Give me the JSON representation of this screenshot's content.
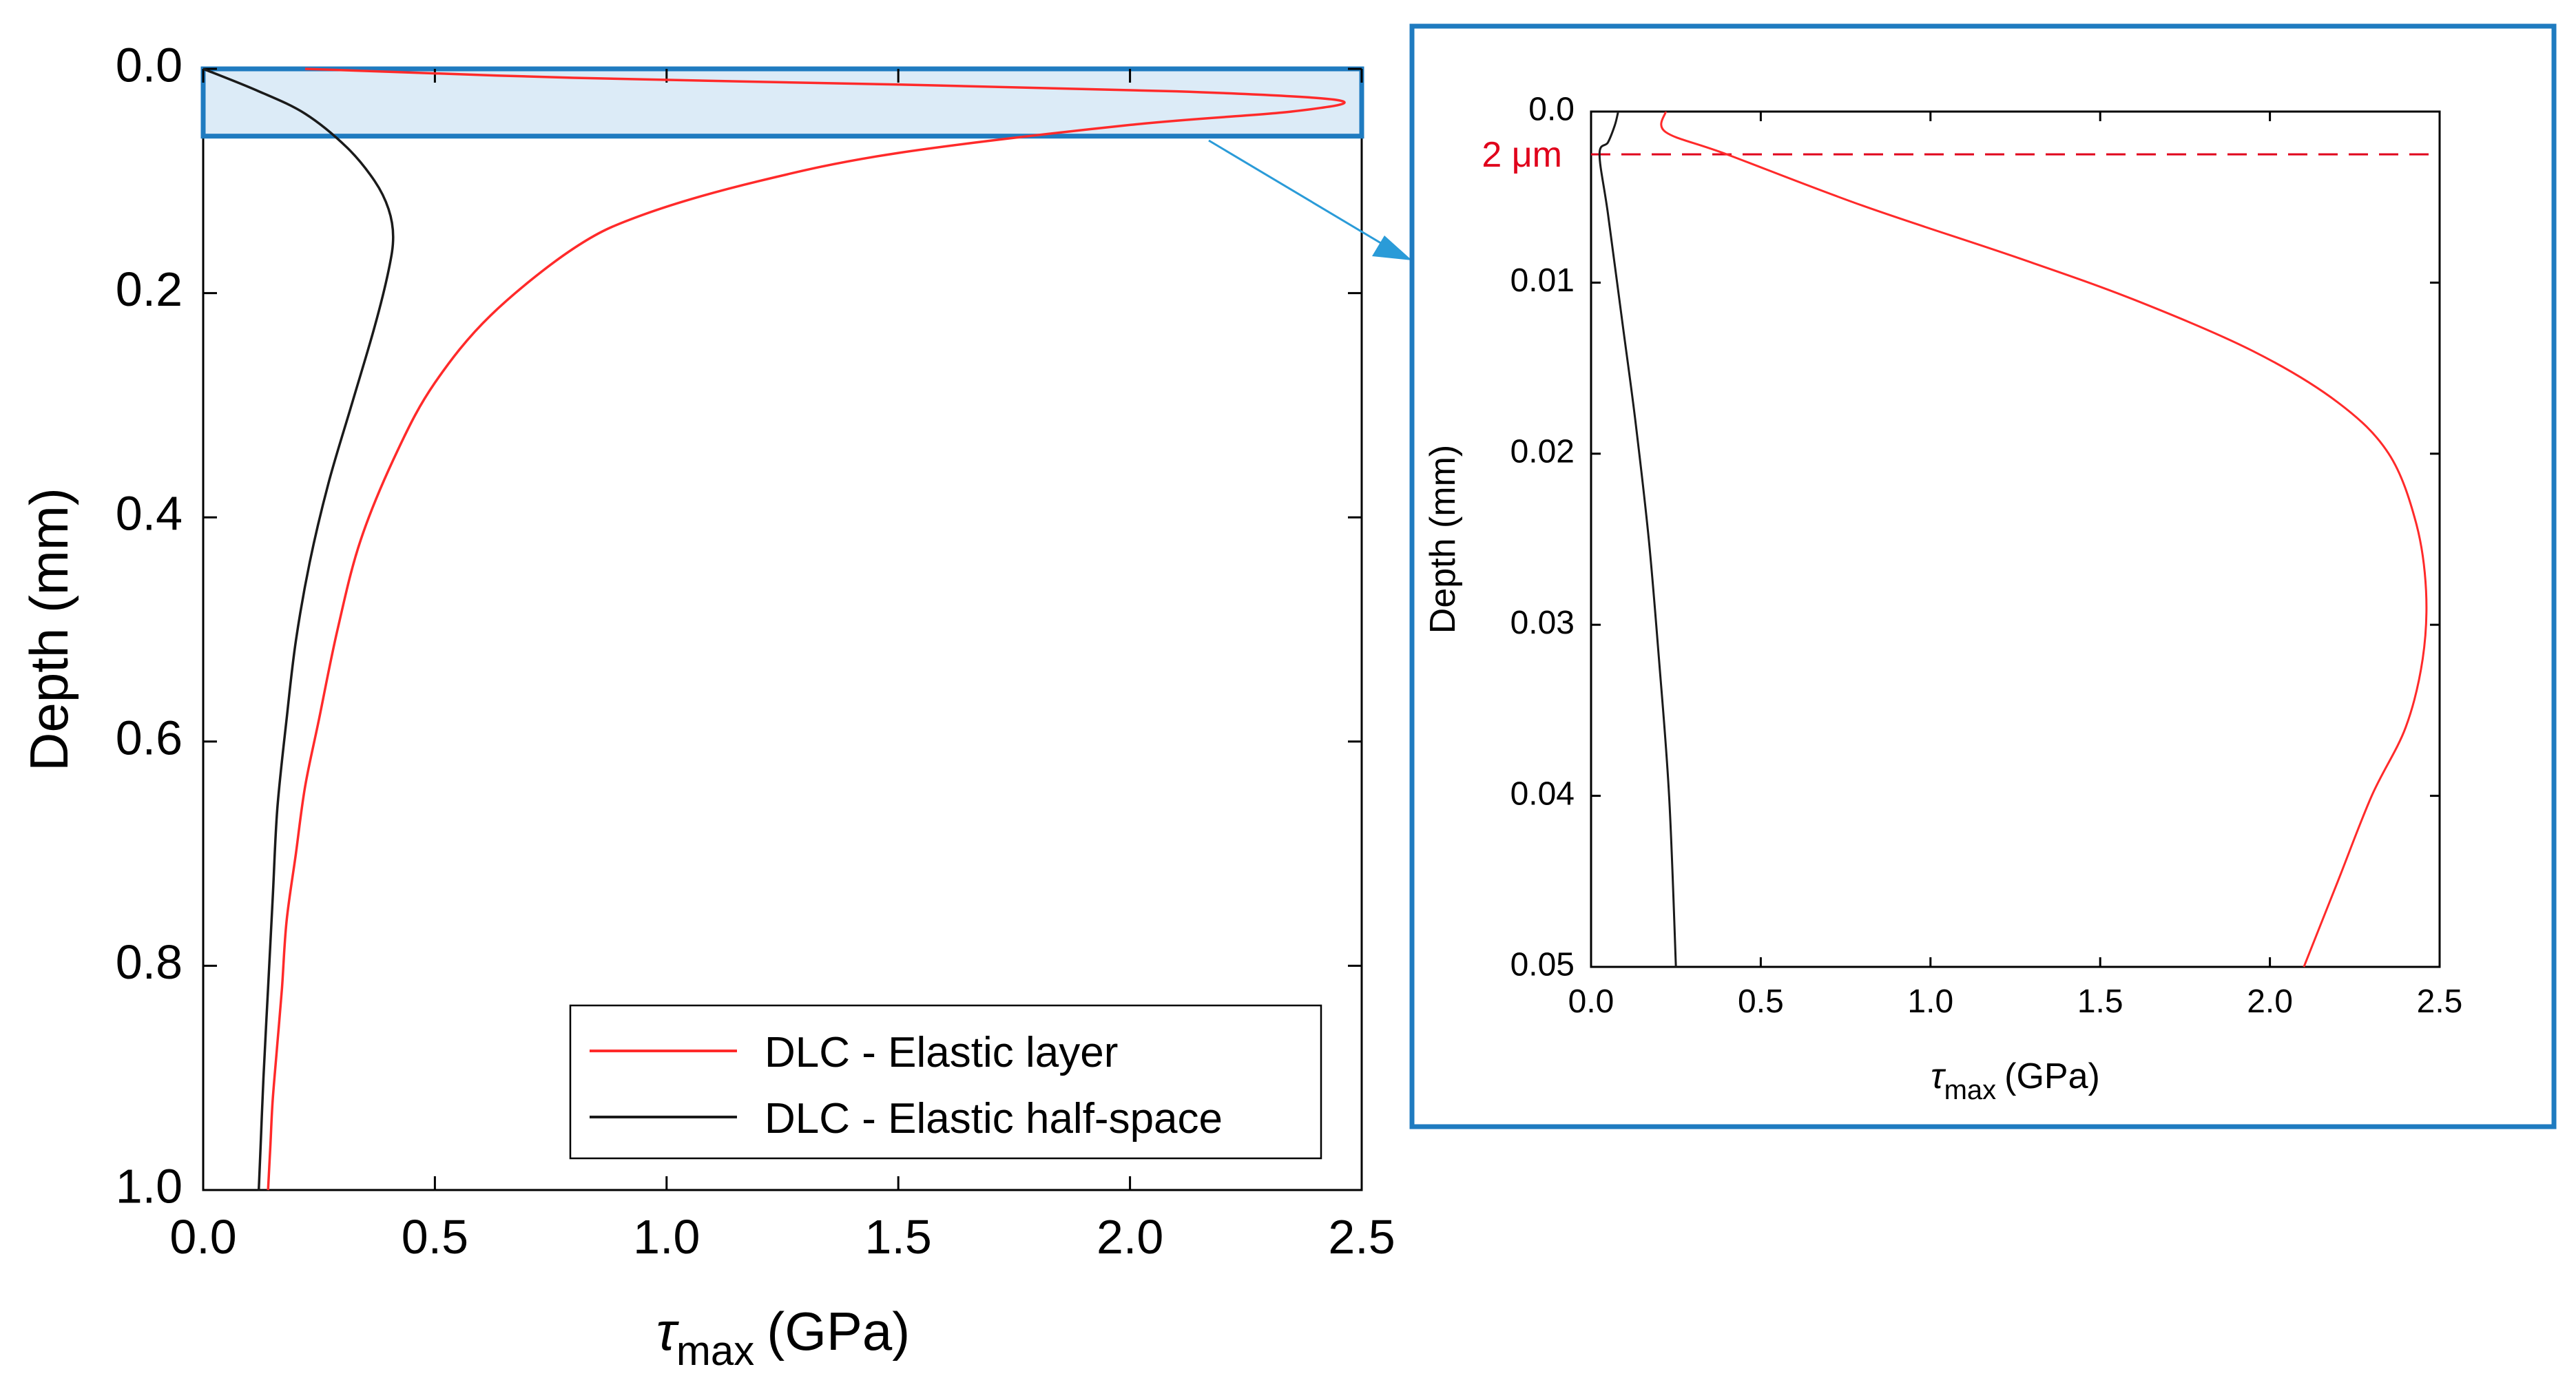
{
  "colors": {
    "elastic_layer": "#ff2a2a",
    "half_space": "#1a1a1a",
    "highlight_stroke": "#1f7bc0",
    "highlight_fill": "#dcebf7",
    "inset_frame": "#1f7bc0",
    "arrow": "#2a9bd8",
    "annotation": "#e0001b"
  },
  "chart_data": [
    {
      "id": "main",
      "type": "line",
      "xlabel_symbol": "τ",
      "xlabel_sub": "max",
      "xlabel_unit": "(GPa)",
      "ylabel": "Depth (mm)",
      "xlim": [
        0,
        2.5
      ],
      "ylim": [
        0,
        1.0
      ],
      "y_inverted": true,
      "grid": false,
      "xticks": [
        "0.0",
        "0.5",
        "1.0",
        "1.5",
        "2.0",
        "2.5"
      ],
      "yticks": [
        "0.0",
        "0.2",
        "0.4",
        "0.6",
        "0.8",
        "1.0"
      ],
      "legend": {
        "placement": "bottom-right",
        "entries": [
          "DLC - Elastic layer",
          "DLC - Elastic half-space"
        ]
      },
      "highlight_region": {
        "depth_from": 0.0,
        "depth_to": 0.06
      },
      "series": [
        {
          "name": "DLC - Elastic layer",
          "color_key": "elastic_layer",
          "x": [
            0.22,
            0.8,
            1.5,
            2.1,
            2.45,
            2.35,
            2.0,
            1.5,
            1.2,
            0.95,
            0.8,
            0.62,
            0.5,
            0.42,
            0.34,
            0.29,
            0.25,
            0.22,
            0.2,
            0.18,
            0.17,
            0.16,
            0.15,
            0.145,
            0.14
          ],
          "y": [
            0.0,
            0.008,
            0.014,
            0.02,
            0.028,
            0.038,
            0.05,
            0.075,
            0.1,
            0.13,
            0.16,
            0.22,
            0.28,
            0.34,
            0.42,
            0.5,
            0.58,
            0.64,
            0.7,
            0.76,
            0.82,
            0.87,
            0.92,
            0.96,
            1.0
          ]
        },
        {
          "name": "DLC - Elastic half-space",
          "color_key": "half_space",
          "x": [
            0.0,
            0.12,
            0.22,
            0.31,
            0.37,
            0.4,
            0.41,
            0.4,
            0.37,
            0.32,
            0.27,
            0.23,
            0.2,
            0.18,
            0.16,
            0.15,
            0.14,
            0.13,
            0.125,
            0.12
          ],
          "y": [
            0.0,
            0.02,
            0.04,
            0.07,
            0.1,
            0.125,
            0.15,
            0.18,
            0.23,
            0.3,
            0.37,
            0.44,
            0.51,
            0.58,
            0.66,
            0.74,
            0.82,
            0.9,
            0.95,
            1.0
          ]
        }
      ]
    },
    {
      "id": "inset",
      "type": "line",
      "xlabel_symbol": "τ",
      "xlabel_sub": "max",
      "xlabel_unit": "(GPa)",
      "ylabel": "Depth (mm)",
      "xlim": [
        0,
        2.5
      ],
      "ylim": [
        0,
        0.05
      ],
      "y_inverted": true,
      "grid": false,
      "xticks": [
        "0.0",
        "0.5",
        "1.0",
        "1.5",
        "2.0",
        "2.5"
      ],
      "yticks": [
        "0.0",
        "0.01",
        "0.02",
        "0.03",
        "0.04",
        "0.05"
      ],
      "annotation": {
        "label": "2 μm",
        "depth": 0.0025
      },
      "series": [
        {
          "name": "DLC - Elastic layer",
          "color_key": "elastic_layer",
          "x": [
            0.22,
            0.22,
            0.4,
            0.8,
            1.25,
            1.6,
            1.95,
            2.2,
            2.35,
            2.43,
            2.46,
            2.45,
            2.4,
            2.3,
            2.2,
            2.1
          ],
          "y": [
            0.0,
            0.0012,
            0.0025,
            0.0055,
            0.0085,
            0.011,
            0.014,
            0.017,
            0.02,
            0.024,
            0.028,
            0.032,
            0.036,
            0.04,
            0.045,
            0.05
          ]
        },
        {
          "name": "DLC - Elastic half-space",
          "color_key": "half_space",
          "x": [
            0.08,
            0.07,
            0.05,
            0.025,
            0.05,
            0.09,
            0.13,
            0.17,
            0.2,
            0.23,
            0.25
          ],
          "y": [
            0.0,
            0.0008,
            0.0018,
            0.0025,
            0.006,
            0.012,
            0.018,
            0.025,
            0.032,
            0.04,
            0.05
          ]
        }
      ]
    }
  ]
}
